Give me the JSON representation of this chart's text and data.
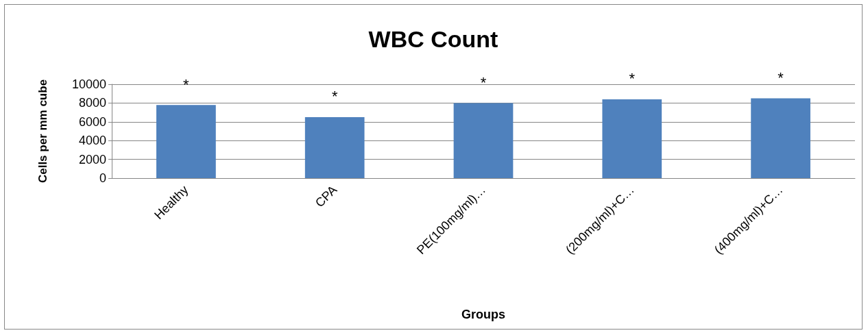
{
  "chart_data": {
    "type": "bar",
    "title": "WBC Count",
    "xlabel": "Groups",
    "ylabel": "Cells per mm cube",
    "categories": [
      "Healthy",
      "CPA",
      "PE(100mg/ml)…",
      "(200mg/ml)+C…",
      "(400mg/ml)+C…"
    ],
    "values": [
      7800,
      6500,
      8000,
      8400,
      8500
    ],
    "color": "#4f81bd",
    "ylim": [
      0,
      10000
    ],
    "yticks": [
      0,
      2000,
      4000,
      6000,
      8000,
      10000
    ],
    "grid": "y",
    "annotations": [
      "*",
      "*",
      "*",
      "*",
      "*"
    ]
  }
}
